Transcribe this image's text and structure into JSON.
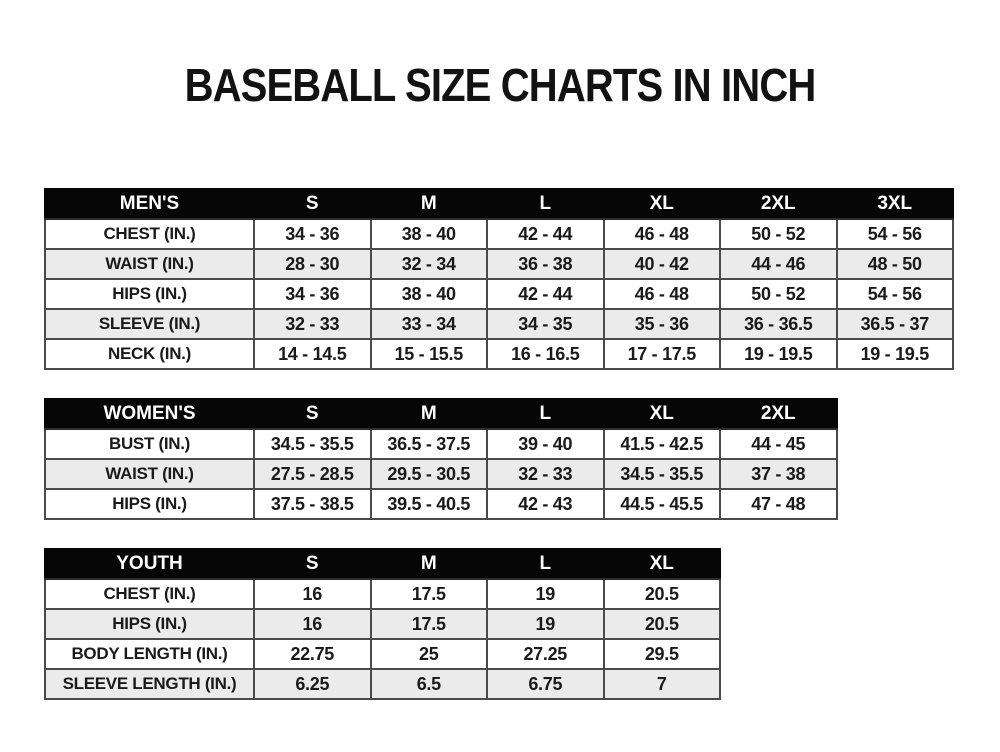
{
  "page": {
    "title": "BASEBALL SIZE CHARTS IN INCH",
    "unit": "inch"
  },
  "colors": {
    "background": "#ffffff",
    "header_bg": "#060606",
    "header_text": "#ffffff",
    "row_stripe": "#ebebeb",
    "border": "#4a4a4a",
    "text": "#1a1a1a"
  },
  "tables": [
    {
      "id": "mens",
      "group_label": "MEN'S",
      "header": [
        "MEN'S",
        "S",
        "M",
        "L",
        "XL",
        "2XL",
        "3XL"
      ],
      "rows": [
        [
          "CHEST (IN.)",
          "34 - 36",
          "38 - 40",
          "42 - 44",
          "46 - 48",
          "50 - 52",
          "54 - 56"
        ],
        [
          "WAIST (IN.)",
          "28 - 30",
          "32 - 34",
          "36 - 38",
          "40 - 42",
          "44 - 46",
          "48 - 50"
        ],
        [
          "HIPS (IN.)",
          "34 - 36",
          "38 - 40",
          "42 - 44",
          "46 - 48",
          "50 - 52",
          "54 - 56"
        ],
        [
          "SLEEVE (IN.)",
          "32 - 33",
          "33 - 34",
          "34 - 35",
          "35 - 36",
          "36 - 36.5",
          "36.5 - 37"
        ],
        [
          "NECK (IN.)",
          "14 - 14.5",
          "15 - 15.5",
          "16 - 16.5",
          "17 - 17.5",
          "19 - 19.5",
          "19 - 19.5"
        ]
      ]
    },
    {
      "id": "womens",
      "group_label": "WOMEN'S",
      "header": [
        "WOMEN'S",
        "S",
        "M",
        "L",
        "XL",
        "2XL"
      ],
      "rows": [
        [
          "BUST (IN.)",
          "34.5 - 35.5",
          "36.5 - 37.5",
          "39 - 40",
          "41.5 - 42.5",
          "44 - 45"
        ],
        [
          "WAIST (IN.)",
          "27.5 - 28.5",
          "29.5 - 30.5",
          "32 - 33",
          "34.5 - 35.5",
          "37 - 38"
        ],
        [
          "HIPS (IN.)",
          "37.5 - 38.5",
          "39.5 - 40.5",
          "42 - 43",
          "44.5 - 45.5",
          "47 - 48"
        ]
      ]
    },
    {
      "id": "youth",
      "group_label": "YOUTH",
      "header": [
        "YOUTH",
        "S",
        "M",
        "L",
        "XL"
      ],
      "rows": [
        [
          "CHEST (IN.)",
          "16",
          "17.5",
          "19",
          "20.5"
        ],
        [
          "HIPS (IN.)",
          "16",
          "17.5",
          "19",
          "20.5"
        ],
        [
          "BODY LENGTH (IN.)",
          "22.75",
          "25",
          "27.25",
          "29.5"
        ],
        [
          "SLEEVE LENGTH (IN.)",
          "6.25",
          "6.5",
          "6.75",
          "7"
        ]
      ]
    }
  ]
}
